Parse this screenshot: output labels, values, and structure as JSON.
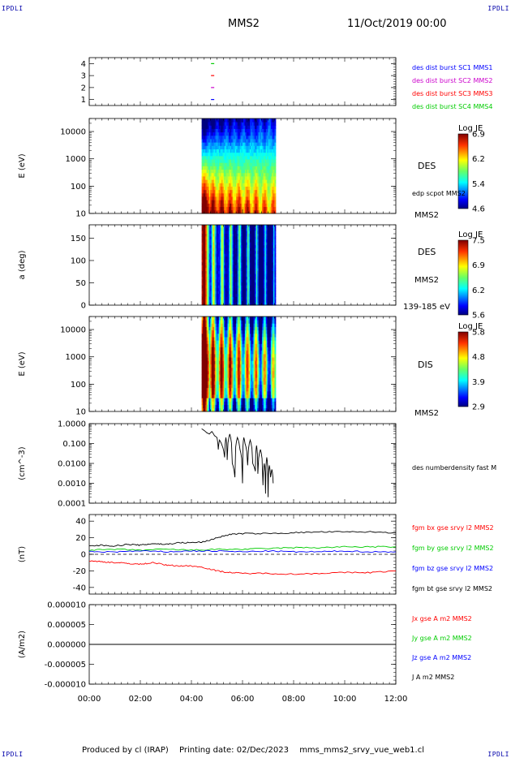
{
  "corner_labels": [
    "IPDLI",
    "IPDLI",
    "IPDLI",
    "IPDLI"
  ],
  "header": {
    "title": "MMS2",
    "datetime": "11/Oct/2019 00:00"
  },
  "footer": {
    "produced_by": "Produced by cl (IRAP)",
    "printing_date": "Printing date: 02/Dec/2023",
    "file": "mms_mms2_srvy_vue_web1.cl"
  },
  "colors": {
    "mms1": "#0000ff",
    "mms2": "#cc00cc",
    "mms3": "#ff0000",
    "mms4": "#00cc00",
    "bx": "#ff0000",
    "by": "#00cc00",
    "bz": "#0000ff",
    "bt": "#000000"
  },
  "chart_data": [
    {
      "id": "burst",
      "type": "scatter",
      "ylabel": "",
      "yticks": [
        "1",
        "2",
        "3",
        "4"
      ],
      "ylim": [
        0.5,
        4.5
      ],
      "legend": [
        {
          "label": "des dist burst SC1 MMS1",
          "color": "#0000ff"
        },
        {
          "label": "des dist burst SC2 MMS2",
          "color": "#cc00cc"
        },
        {
          "label": "des dist burst SC3 MMS3",
          "color": "#ff0000"
        },
        {
          "label": "des dist burst SC4 MMS4",
          "color": "#00cc00"
        }
      ],
      "points": [
        {
          "x": 4.83,
          "y": 1,
          "color": "#0000ff"
        },
        {
          "x": 4.83,
          "y": 2,
          "color": "#cc00cc"
        },
        {
          "x": 4.83,
          "y": 3,
          "color": "#ff0000"
        },
        {
          "x": 4.83,
          "y": 4,
          "color": "#00cc00"
        }
      ]
    },
    {
      "id": "des-energy",
      "type": "heatmap",
      "ylabel": "E (eV)",
      "scale": "log",
      "yticks": [
        "10",
        "100",
        "1000",
        "10000"
      ],
      "ylim": [
        10,
        30000
      ],
      "xrange_hours": [
        4.4,
        7.3
      ],
      "colorbar": {
        "title": "Log JE",
        "ticks": [
          "6.9",
          "6.2",
          "5.4",
          "4.6"
        ],
        "range": [
          4.6,
          6.9
        ]
      },
      "labels": [
        "DES",
        "edp scpot MMS2",
        "MMS2"
      ]
    },
    {
      "id": "des-pitch",
      "type": "heatmap",
      "ylabel": "a (deg)",
      "yticks": [
        "0",
        "50",
        "100",
        "150"
      ],
      "ylim": [
        0,
        180
      ],
      "xrange_hours": [
        4.4,
        7.3
      ],
      "colorbar": {
        "title": "Log JE",
        "ticks": [
          "7.5",
          "6.9",
          "6.2",
          "5.6"
        ],
        "range": [
          5.6,
          7.5
        ]
      },
      "labels": [
        "DES",
        "MMS2",
        "139-185 eV"
      ]
    },
    {
      "id": "dis-energy",
      "type": "heatmap",
      "ylabel": "E (eV)",
      "scale": "log",
      "yticks": [
        "10",
        "100",
        "1000",
        "10000"
      ],
      "ylim": [
        10,
        30000
      ],
      "xrange_hours": [
        4.4,
        7.3
      ],
      "colorbar": {
        "title": "Log JE",
        "ticks": [
          "5.8",
          "4.8",
          "3.9",
          "2.9"
        ],
        "range": [
          2.9,
          5.8
        ]
      },
      "labels": [
        "DIS",
        "MMS2"
      ]
    },
    {
      "id": "density",
      "type": "line",
      "ylabel": "(cm^-3)",
      "scale": "log",
      "yticks": [
        "1.0000",
        "0.100",
        "0.0100",
        "0.0010",
        "0.0001"
      ],
      "ylim": [
        0.0001,
        1.0
      ],
      "legend": [
        {
          "label": "des numberdensity fast M",
          "color": "#000000"
        }
      ],
      "series": [
        {
          "color": "#000000",
          "x": [
            4.4,
            4.5,
            4.6,
            4.7,
            4.8,
            4.9,
            5.0,
            5.05,
            5.1,
            5.2,
            5.3,
            5.35,
            5.4,
            5.5,
            5.6,
            5.7,
            5.8,
            5.9,
            6.0,
            6.05,
            6.1,
            6.2,
            6.3,
            6.4,
            6.5,
            6.55,
            6.6,
            6.7,
            6.8,
            6.85,
            6.9,
            6.95,
            7.0,
            7.05,
            7.1,
            7.15,
            7.2
          ],
          "values": [
            0.55,
            0.45,
            0.35,
            0.3,
            0.4,
            0.25,
            0.2,
            0.05,
            0.15,
            0.08,
            0.02,
            0.2,
            0.015,
            0.3,
            0.01,
            0.002,
            0.2,
            0.05,
            0.001,
            0.2,
            0.1,
            0.008,
            0.15,
            0.01,
            0.004,
            0.08,
            0.003,
            0.05,
            0.0008,
            0.01,
            0.0003,
            0.02,
            0.0002,
            0.008,
            0.002,
            0.005,
            0.001
          ]
        }
      ]
    },
    {
      "id": "fgm",
      "type": "line",
      "ylabel": "(nT)",
      "yticks": [
        "40",
        "20",
        "0",
        "-20",
        "-40"
      ],
      "ylim": [
        -48,
        48
      ],
      "legend": [
        {
          "label": "fgm bx gse srvy l2 MMS2",
          "color": "#ff0000"
        },
        {
          "label": "fgm by gse srvy l2 MMS2",
          "color": "#00cc00"
        },
        {
          "label": "fgm bz gse srvy l2 MMS2",
          "color": "#0000ff"
        },
        {
          "label": "fgm bt gse srvy l2 MMS2",
          "color": "#000000"
        }
      ],
      "series": [
        {
          "name": "fgm bt gse srvy l2 MMS2",
          "color": "#000000",
          "x": [
            0,
            0.5,
            1.0,
            1.5,
            2.0,
            2.5,
            3.0,
            3.5,
            4.0,
            4.5,
            5.0,
            5.5,
            6.0,
            7.0,
            8.0,
            9.0,
            10.0,
            11.0,
            12.0
          ],
          "values": [
            10,
            11,
            10,
            12,
            11,
            13,
            12,
            14,
            14,
            15,
            20,
            24,
            25,
            25,
            26,
            27,
            27,
            27,
            26
          ]
        },
        {
          "name": "fgm by gse srvy l2 MMS2",
          "color": "#00cc00",
          "x": [
            0,
            1,
            2,
            3,
            4,
            5,
            6,
            7,
            8,
            9,
            10,
            11,
            12
          ],
          "values": [
            5,
            6,
            5,
            6,
            5,
            6,
            6,
            7,
            8,
            8,
            9,
            9,
            9
          ]
        },
        {
          "name": "fgm bz gse srvy l2 MMS2",
          "color": "#0000ff",
          "x": [
            0,
            1,
            2,
            3,
            4,
            5,
            6,
            7,
            8,
            9,
            10,
            11,
            12
          ],
          "values": [
            3,
            3,
            4,
            3,
            4,
            4,
            3,
            4,
            3,
            3,
            4,
            3,
            3
          ]
        },
        {
          "name": "fgm bx gse srvy l2 MMS2",
          "color": "#ff0000",
          "x": [
            0,
            0.5,
            1.0,
            1.5,
            2.0,
            2.5,
            3.0,
            3.5,
            4.0,
            4.5,
            5.0,
            5.5,
            6.0,
            7.0,
            8.0,
            9.0,
            10.0,
            11.0,
            12.0
          ],
          "values": [
            -8,
            -9,
            -10,
            -11,
            -12,
            -10,
            -13,
            -14,
            -14,
            -16,
            -20,
            -22,
            -23,
            -23,
            -24,
            -23,
            -22,
            -22,
            -20
          ]
        }
      ]
    },
    {
      "id": "current",
      "type": "line",
      "ylabel": "(A/m2)",
      "yticks": [
        "0.000010",
        "0.000005",
        "0.000000",
        "-0.000005",
        "-0.000010"
      ],
      "ylim": [
        -1e-05,
        1e-05
      ],
      "xlabel": "",
      "xticks": [
        "00:00",
        "02:00",
        "04:00",
        "06:00",
        "08:00",
        "10:00",
        "12:00"
      ],
      "xlim_hours": [
        0,
        12
      ],
      "legend": [
        {
          "label": "Jx gse A m2 MMS2",
          "color": "#ff0000"
        },
        {
          "label": "Jy gse A m2 MMS2",
          "color": "#00cc00"
        },
        {
          "label": "Jz gse A m2 MMS2",
          "color": "#0000ff"
        },
        {
          "label": "J A m2 MMS2",
          "color": "#000000"
        }
      ],
      "series": [
        {
          "color": "#000000",
          "x": [
            0,
            12
          ],
          "values": [
            0,
            0
          ]
        }
      ]
    }
  ]
}
